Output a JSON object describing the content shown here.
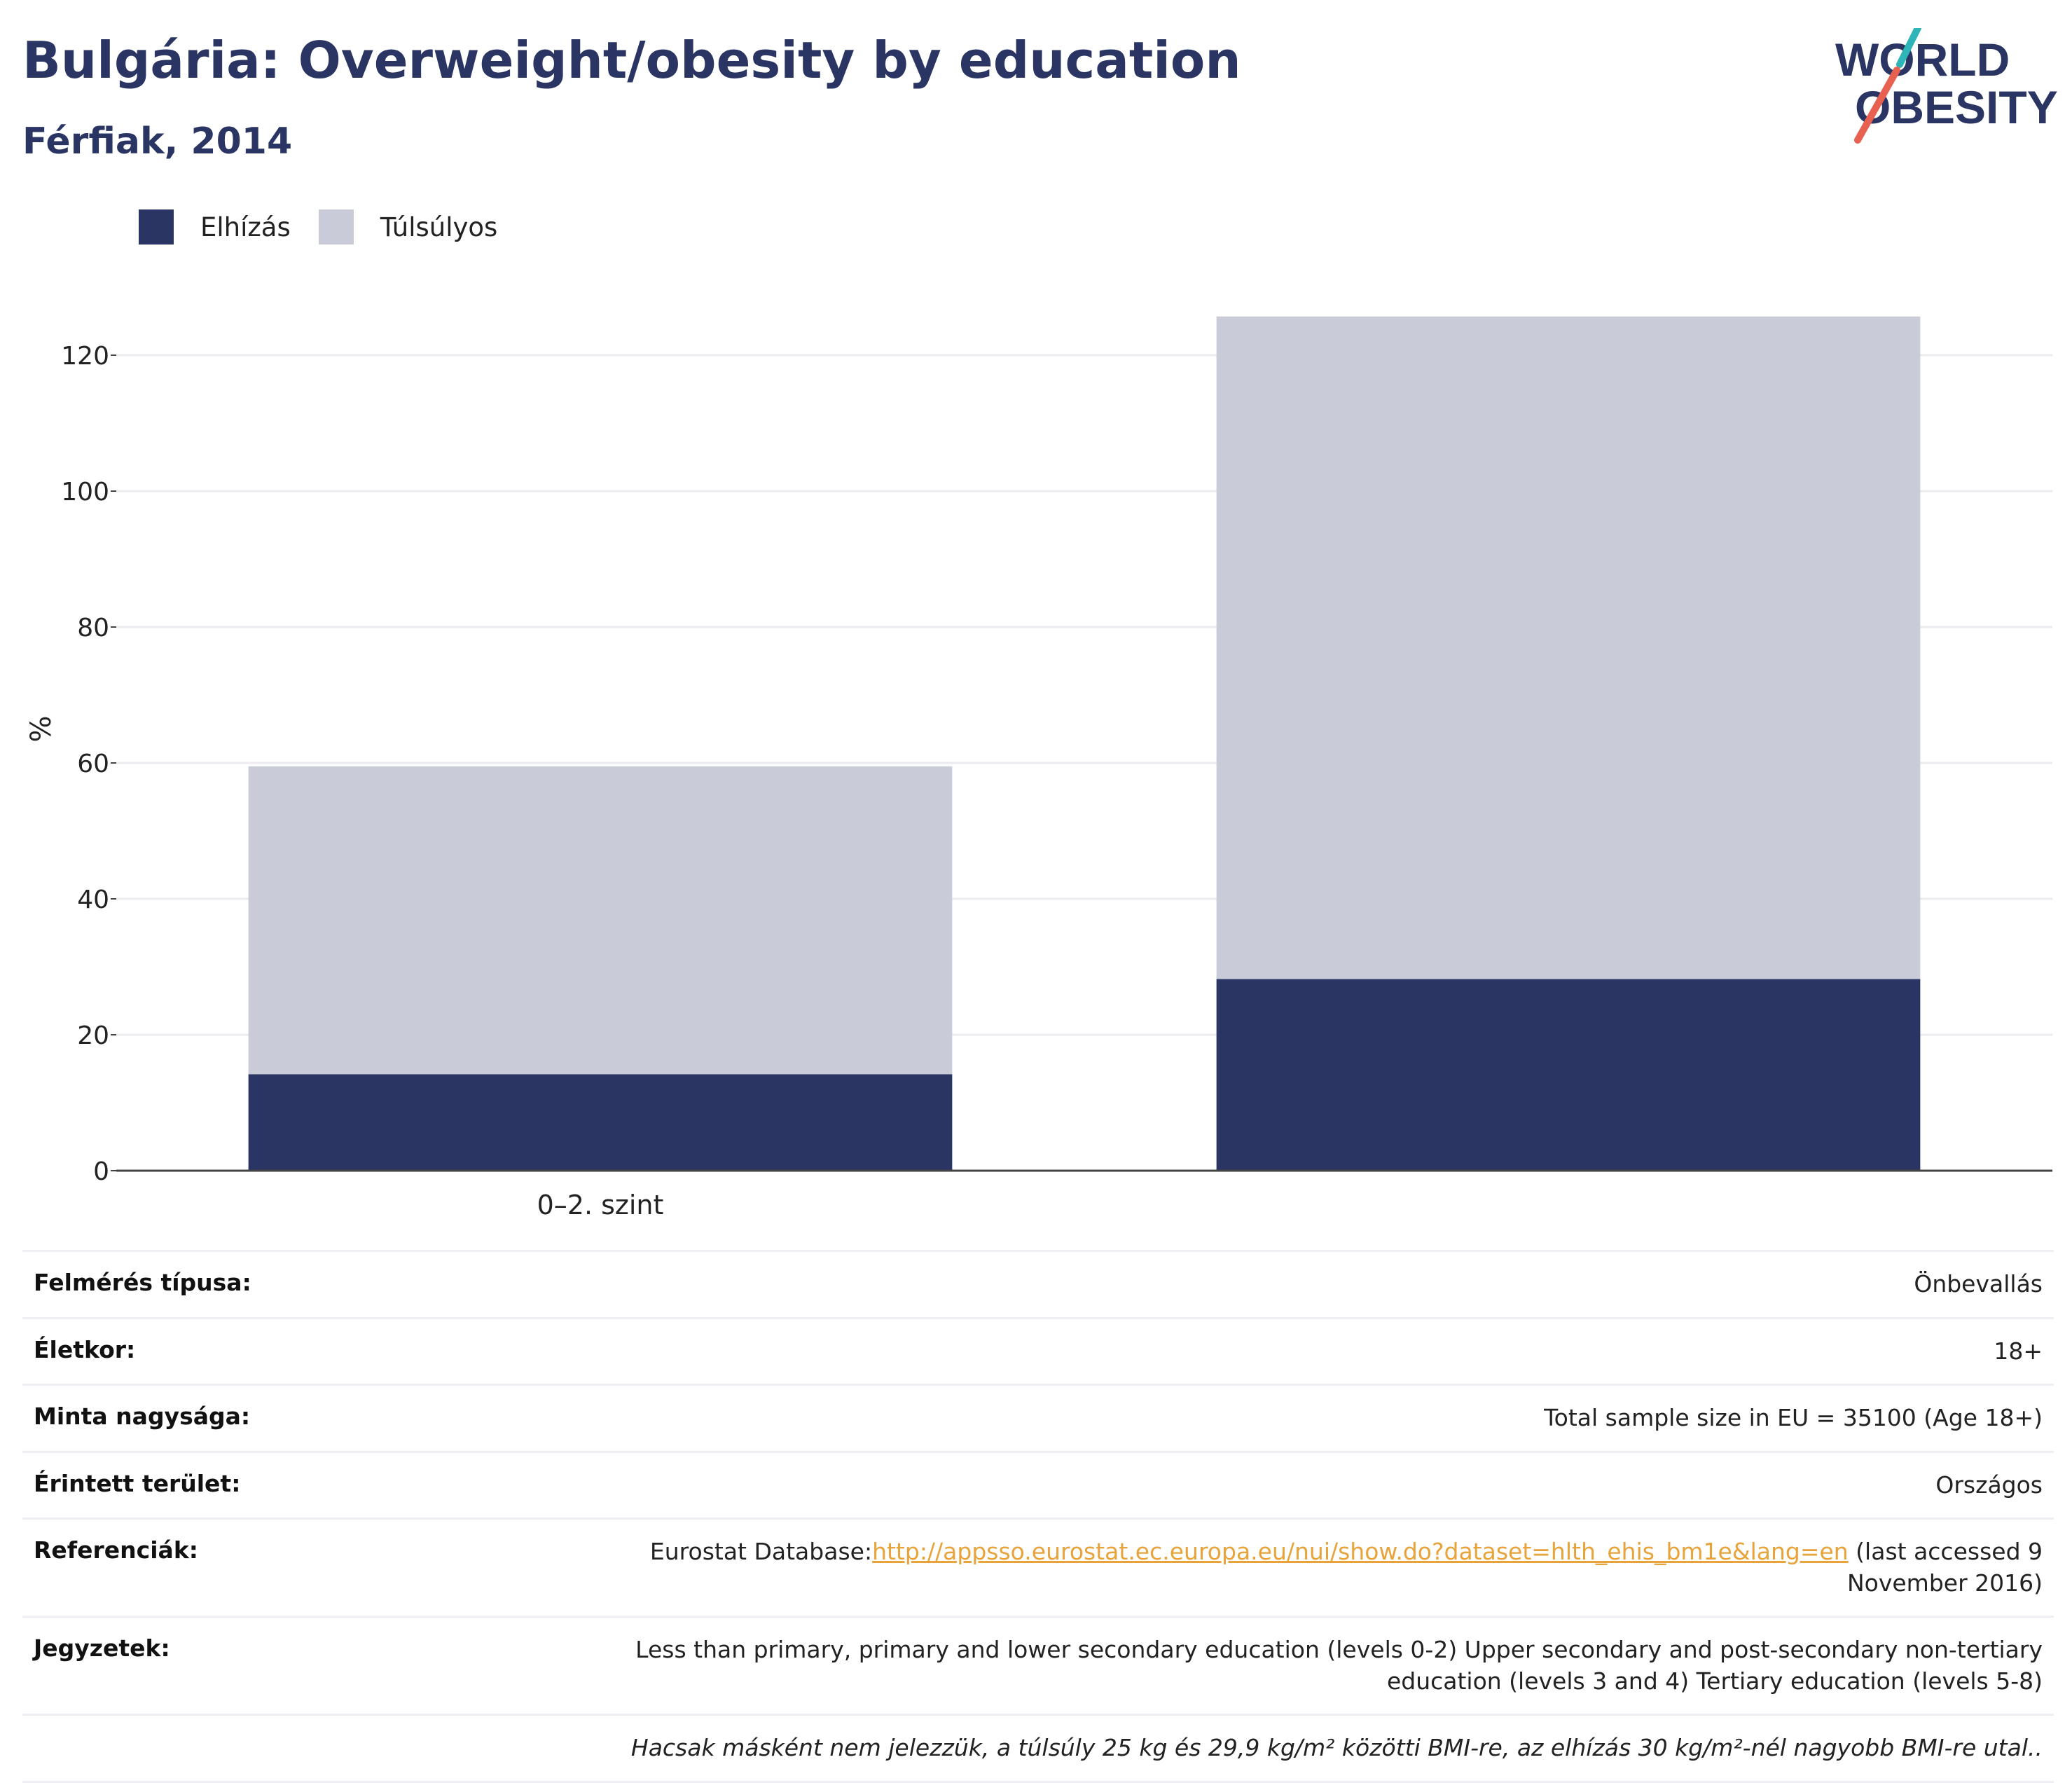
{
  "title": "Bulgária: Overweight/obesity by education",
  "subtitle": "Férfiak, 2014",
  "logo": {
    "line1": "WORLD",
    "line2": "OBESITY",
    "accent_colors": [
      "#2fb5b7",
      "#e8604f"
    ]
  },
  "colors": {
    "obesity": "#2a3563",
    "overweight": "#c9ccd8",
    "text": "#2a3563",
    "link": "#e8a33a"
  },
  "chart_data": {
    "type": "bar",
    "stacked": true,
    "categories": [
      "0–2. szint",
      ""
    ],
    "series": [
      {
        "name": "Elhízás",
        "values": [
          14.2,
          28.2
        ]
      },
      {
        "name": "Túlsúlyos",
        "values": [
          45.3,
          97.5
        ]
      }
    ],
    "ylabel": "%",
    "xlabel": "",
    "ylim": [
      0,
      130
    ],
    "yticks": [
      0,
      20,
      40,
      60,
      80,
      100,
      120
    ],
    "grid": true,
    "legend": "top-left"
  },
  "info": {
    "survey_type": {
      "label": "Felmérés típusa:",
      "value": "Önbevallás"
    },
    "age": {
      "label": "Életkor:",
      "value": "18+"
    },
    "sample": {
      "label": "Minta nagysága:",
      "value": "Total sample size in EU = 35100 (Age 18+)"
    },
    "area": {
      "label": "Érintett terület:",
      "value": "Országos"
    },
    "references": {
      "label": "Referenciák:",
      "prefix": "Eurostat Database:",
      "link": "http://appsso.eurostat.ec.europa.eu/nui/show.do?dataset=hlth_ehis_bm1e&lang=en",
      "suffix": " (last accessed 9 November 2016)"
    },
    "notes": {
      "label": "Jegyzetek:",
      "value": "Less than primary, primary and lower secondary education (levels 0-2) Upper secondary and post-secondary non-tertiary education (levels 3 and 4) Tertiary education (levels 5-8)"
    },
    "footnote": "Hacsak másként nem jelezzük, a túlsúly 25 kg és 29,9 kg/m² közötti BMI-re, az elhízás 30 kg/m²-nél nagyobb BMI-re utal.."
  }
}
